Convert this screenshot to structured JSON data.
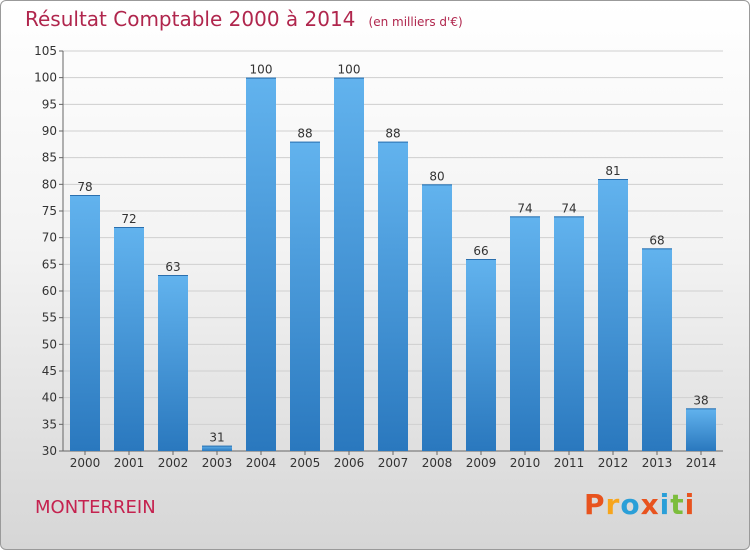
{
  "page": {
    "title": "Résultat Comptable 2000 à 2014",
    "unit": "(en milliers d'€)",
    "commune": "MONTERREIN",
    "logo_text": "Proxiti"
  },
  "colors": {
    "title": "#b0264d",
    "bar_top": "#62b3ee",
    "bar_bottom": "#2a78be",
    "grid": "#cfcfcf",
    "logo": [
      "#e8531e",
      "#f7a51c",
      "#2a9fd8",
      "#e8531e",
      "#2a9fd8",
      "#7cbd3c",
      "#e8531e"
    ]
  },
  "chart_data": {
    "type": "bar",
    "title": "Résultat Comptable 2000 à 2014",
    "subtitle": "(en milliers d'€)",
    "xlabel": "",
    "ylabel": "",
    "categories": [
      "2000",
      "2001",
      "2002",
      "2003",
      "2004",
      "2005",
      "2006",
      "2007",
      "2008",
      "2009",
      "2010",
      "2011",
      "2012",
      "2013",
      "2014"
    ],
    "values": [
      78,
      72,
      63,
      31,
      100,
      88,
      100,
      88,
      80,
      66,
      74,
      74,
      81,
      68,
      38
    ],
    "ylim": [
      30,
      105
    ],
    "yticks": [
      30,
      35,
      40,
      45,
      50,
      55,
      60,
      65,
      70,
      75,
      80,
      85,
      90,
      95,
      100,
      105
    ],
    "grid": true,
    "legend": "none"
  }
}
